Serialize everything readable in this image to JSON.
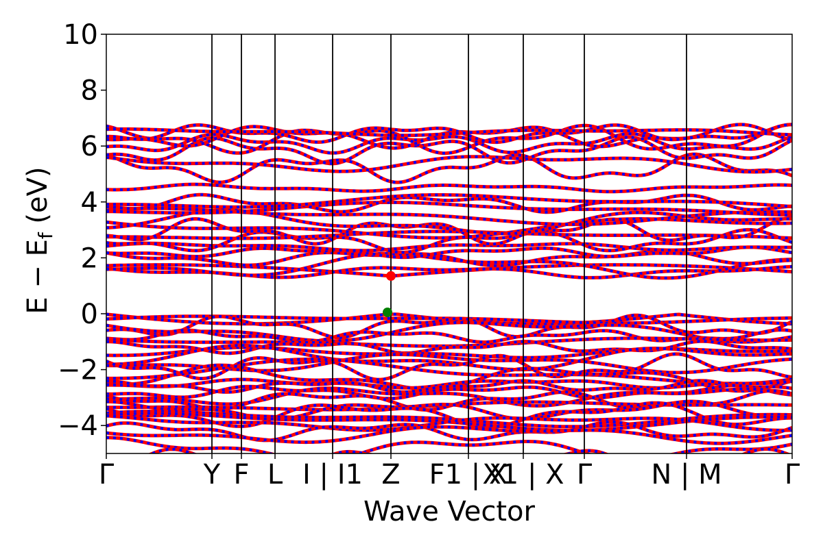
{
  "chart_data": {
    "type": "line",
    "xlabel": "Wave Vector",
    "ylabel": "E − E",
    "ylabel_sub": "f",
    "ylabel_unit": " (eV)",
    "ylim": [
      -5,
      10
    ],
    "yticks": [
      -4,
      -2,
      0,
      2,
      4,
      6,
      8,
      10
    ],
    "ytick_labels": [
      "−4",
      "−2",
      "0",
      "2",
      "4",
      "6",
      "8",
      "10"
    ],
    "grid": false,
    "legend": "none",
    "line_colors": {
      "primary": "#ff0000",
      "overlay": "#0000ff"
    },
    "x_range": [
      0,
      1
    ],
    "kpoints": [
      {
        "x": 0.0,
        "label": "Γ",
        "sub": "",
        "suffix": ""
      },
      {
        "x": 0.154,
        "label": "Y",
        "sub": "",
        "suffix": ""
      },
      {
        "x": 0.197,
        "label": "F",
        "sub": "",
        "suffix": ""
      },
      {
        "x": 0.246,
        "label": "L",
        "sub": "",
        "suffix": ""
      },
      {
        "x": 0.33,
        "label": "I | ",
        "sub": "",
        "suffix": "",
        "italic_part": "I",
        "italic_sub": "1"
      },
      {
        "x": 0.415,
        "label": "Z",
        "sub": "",
        "suffix": ""
      },
      {
        "x": 0.528,
        "label": "",
        "sub": "",
        "suffix": " | ",
        "italic_part": "F",
        "italic_sub": "1",
        "tail_italic": "X"
      },
      {
        "x": 0.608,
        "label": "",
        "sub": "",
        "suffix": " | X",
        "italic_part": "X",
        "italic_sub": "1"
      },
      {
        "x": 0.697,
        "label": "Γ",
        "sub": "",
        "suffix": ""
      },
      {
        "x": 0.846,
        "label": "N | M",
        "sub": "",
        "suffix": ""
      },
      {
        "x": 1.0,
        "label": "Γ",
        "sub": "",
        "suffix": ""
      }
    ],
    "tick_text": [
      "Γ",
      "Y",
      "F",
      "L",
      "I | I1",
      "Z",
      "F1 | X",
      "X1 | X",
      "Γ",
      "N | M",
      "Γ"
    ],
    "vbm": {
      "x": 0.41,
      "y": 0.05,
      "color": "#008000"
    },
    "cbm": {
      "x": 0.415,
      "y": 1.35,
      "color": "#ff0000"
    },
    "bands": {
      "valence_band_count": 28,
      "conduction_band_count": 24,
      "valence_top_at_gamma": [
        -0.05,
        -0.2,
        -0.45,
        -0.6,
        -0.8,
        -1.0,
        -1.2,
        -1.4,
        -1.6,
        -1.75,
        -1.9,
        -2.1,
        -2.3,
        -2.5,
        -2.6,
        -2.8,
        -2.95,
        -3.1,
        -3.3,
        -3.45,
        -3.6,
        -3.75,
        -3.85,
        -3.9,
        -4.2,
        -4.3,
        -4.85,
        -5.2
      ],
      "conduction_at_gamma": [
        1.45,
        1.5,
        1.75,
        2.0,
        2.2,
        2.4,
        2.6,
        2.8,
        2.95,
        3.1,
        3.25,
        3.5,
        3.75,
        3.95,
        4.0,
        4.5,
        5.2,
        5.4,
        5.85,
        6.1,
        6.25,
        6.35,
        6.45,
        6.5
      ]
    }
  }
}
